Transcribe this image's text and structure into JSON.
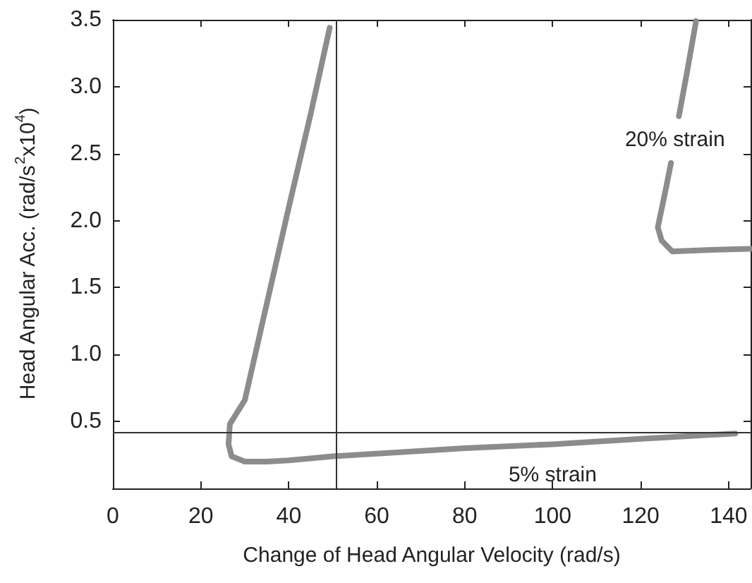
{
  "chart_data": {
    "type": "line",
    "xlabel": "Change of Head Angular Velocity (rad/s)",
    "ylabel": "Head Angular Acc. (rad/s$^{2}$x10$^{4}$)",
    "xlim": [
      0,
      145
    ],
    "xticks": [
      0,
      20,
      40,
      60,
      80,
      100,
      120,
      140
    ],
    "ylim": [
      0,
      3.5
    ],
    "yticks": [
      0.5,
      {
        "value": 1,
        "label": "1.0"
      },
      1.5,
      {
        "value": 2,
        "label": "2.0"
      },
      2.5,
      {
        "value": 3,
        "label": "3.0"
      },
      3.5
    ],
    "series": [
      {
        "name": "5% strain",
        "color": "#8c8c8c",
        "x": [
          49.3,
          45,
          40,
          35,
          30,
          26.6,
          26.3,
          27,
          30,
          35,
          40,
          50,
          60,
          80,
          100,
          120,
          141.5
        ],
        "values": [
          3.44,
          2.8,
          2.1,
          1.38,
          0.66,
          0.48,
          0.33,
          0.24,
          0.2,
          0.2,
          0.21,
          0.24,
          0.26,
          0.3,
          0.33,
          0.37,
          0.41
        ]
      },
      {
        "name": "20% strain",
        "color": "#8c8c8c",
        "x": [
          132.6,
          130.5,
          128.7,
          128.6,
          126.9,
          125.5,
          123.9,
          124.8,
          127.2,
          135,
          145
        ],
        "values": [
          3.49,
          3.1,
          2.78,
          null,
          2.43,
          2.2,
          1.95,
          1.85,
          1.77,
          1.78,
          1.79
        ]
      }
    ],
    "ref_lines": [
      {
        "axis": "x",
        "value": 50.8,
        "color": "#333333"
      },
      {
        "axis": "y",
        "value": 0.42,
        "color": "#333333"
      }
    ],
    "grid": false,
    "marker": "none",
    "line_style": "solid"
  }
}
